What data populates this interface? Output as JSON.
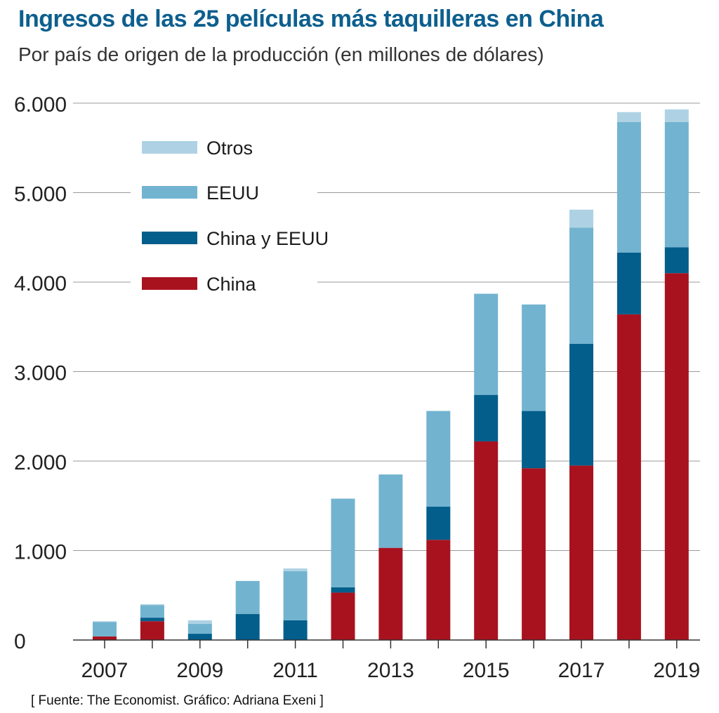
{
  "header": {
    "title": "Ingresos de las 25 películas más taquilleras en China",
    "subtitle": "Por país de origen de la producción (en millones de dólares)"
  },
  "footer": {
    "source": "[ Fuente: The Economist. Gráfico: Adriana Exeni ]"
  },
  "colors": {
    "China": "#a8121f",
    "China y EEUU": "#035e8b",
    "EEUU": "#72b3d0",
    "Otros": "#aed2e4",
    "grid": "#9a9a9a",
    "axis": "#333333"
  },
  "chart_data": {
    "type": "bar",
    "stacked": true,
    "categories": [
      "2007",
      "2008",
      "2009",
      "2010",
      "2011",
      "2012",
      "2013",
      "2014",
      "2015",
      "2016",
      "2017",
      "2018",
      "2019"
    ],
    "x_tick_labels": [
      "2007",
      "",
      "2009",
      "",
      "2011",
      "",
      "2013",
      "",
      "2015",
      "",
      "2017",
      "",
      "2019"
    ],
    "ylim": [
      0,
      6000
    ],
    "y_ticks": [
      0,
      1000,
      2000,
      3000,
      4000,
      5000,
      6000
    ],
    "y_tick_labels": [
      "0",
      "1.000",
      "2.000",
      "3.000",
      "4.000",
      "5.000",
      "6.000"
    ],
    "grid": true,
    "legend_position": "top-left",
    "series": [
      {
        "name": "China",
        "values": [
          40,
          210,
          0,
          0,
          0,
          530,
          1030,
          1120,
          2220,
          1920,
          1950,
          3640,
          4100
        ]
      },
      {
        "name": "China y EEUU",
        "values": [
          0,
          40,
          70,
          290,
          220,
          60,
          0,
          370,
          520,
          640,
          1360,
          690,
          290
        ]
      },
      {
        "name": "EEUU",
        "values": [
          160,
          140,
          110,
          370,
          550,
          990,
          820,
          1070,
          1130,
          1190,
          1300,
          1460,
          1400
        ]
      },
      {
        "name": "Otros",
        "values": [
          10,
          10,
          40,
          0,
          30,
          0,
          0,
          0,
          0,
          0,
          200,
          110,
          140
        ]
      }
    ],
    "legend_order": [
      "Otros",
      "EEUU",
      "China y EEUU",
      "China"
    ]
  }
}
